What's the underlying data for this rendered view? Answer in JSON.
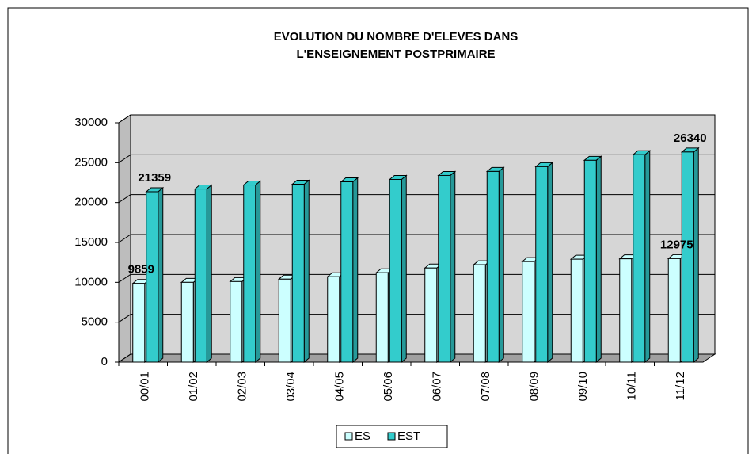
{
  "chart_data": {
    "type": "bar3d",
    "title": [
      "EVOLUTION DU NOMBRE D'ELEVES DANS",
      "L'ENSEIGNEMENT POSTPRIMAIRE"
    ],
    "categories": [
      "00/01",
      "01/02",
      "02/03",
      "03/04",
      "04/05",
      "05/06",
      "06/07",
      "07/08",
      "08/09",
      "09/10",
      "10/11",
      "11/12"
    ],
    "series": [
      {
        "name": "ES",
        "color": "#ccffff",
        "values": [
          9859,
          10000,
          10100,
          10400,
          10700,
          11200,
          11800,
          12200,
          12600,
          12900,
          12950,
          12975
        ],
        "value_labels": [
          "9859",
          null,
          null,
          null,
          null,
          null,
          null,
          null,
          null,
          null,
          null,
          "12975"
        ]
      },
      {
        "name": "EST",
        "color": "#33cccc",
        "values": [
          21359,
          21700,
          22200,
          22300,
          22600,
          22900,
          23400,
          23900,
          24500,
          25300,
          26000,
          26340
        ],
        "value_labels": [
          "21359",
          null,
          null,
          null,
          null,
          null,
          null,
          null,
          null,
          null,
          null,
          "26340"
        ]
      }
    ],
    "ylim": [
      0,
      30000
    ],
    "yticks": [
      0,
      5000,
      10000,
      15000,
      20000,
      25000,
      30000
    ],
    "grid": true,
    "legend": "bottom"
  }
}
